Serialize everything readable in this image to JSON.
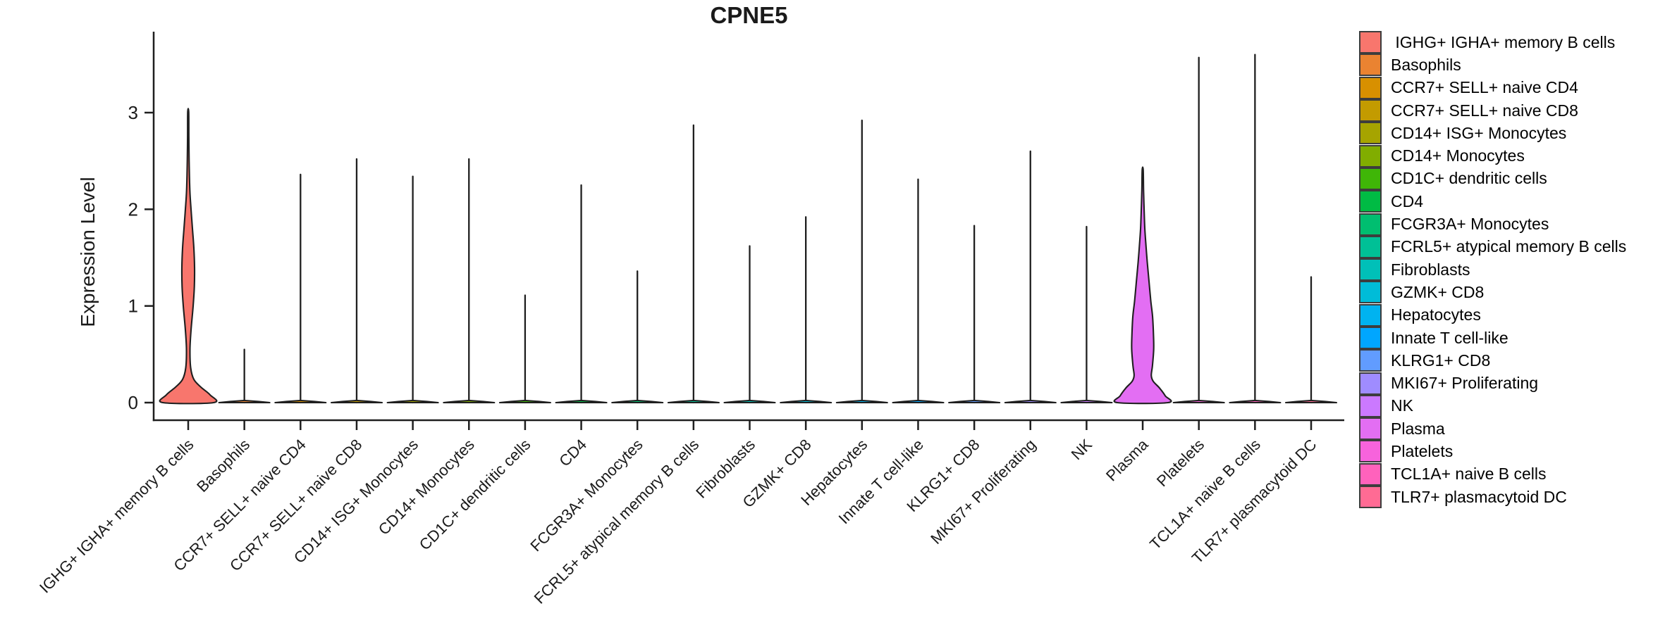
{
  "title": "CPNE5",
  "y_axis": {
    "label": "Expression Level",
    "ticks": [
      "0",
      "1",
      "2",
      "3"
    ]
  },
  "legend": {
    "items": [
      {
        "label": " IGHG+ IGHA+ memory B cells",
        "color": "#F8766D"
      },
      {
        "label": "Basophils",
        "color": "#EA8331"
      },
      {
        "label": "CCR7+ SELL+ naive CD4",
        "color": "#D89000"
      },
      {
        "label": "CCR7+ SELL+ naive CD8",
        "color": "#C39B00"
      },
      {
        "label": "CD14+ ISG+ Monocytes",
        "color": "#A6A400"
      },
      {
        "label": "CD14+ Monocytes",
        "color": "#81AD00"
      },
      {
        "label": "CD1C+ dendritic cells",
        "color": "#3FB607"
      },
      {
        "label": "CD4",
        "color": "#00BB44"
      },
      {
        "label": "FCGR3A+ Monocytes",
        "color": "#00BE70"
      },
      {
        "label": "FCRL5+ atypical memory B cells",
        "color": "#00C096"
      },
      {
        "label": "Fibroblasts",
        "color": "#00C0B8"
      },
      {
        "label": "GZMK+ CD8",
        "color": "#00BCD8"
      },
      {
        "label": "Hepatocytes",
        "color": "#00B3F0"
      },
      {
        "label": "Innate T cell-like",
        "color": "#00A6FF"
      },
      {
        "label": "KLRG1+ CD8",
        "color": "#619CFF"
      },
      {
        "label": "MKI67+ Proliferating",
        "color": "#9F8CFF"
      },
      {
        "label": "NK",
        "color": "#CB79FF"
      },
      {
        "label": "Plasma",
        "color": "#E36EF3"
      },
      {
        "label": "Platelets",
        "color": "#F763DC"
      },
      {
        "label": "TCL1A+ naive B cells",
        "color": "#FF62BC"
      },
      {
        "label": "TLR7+ plasmacytoid DC",
        "color": "#FF6B94"
      }
    ]
  },
  "chart_data": {
    "type": "violin",
    "title": "CPNE5",
    "xlabel": "",
    "ylabel": "Expression Level",
    "ylim": [
      0,
      3.84
    ],
    "yticks": [
      0,
      1,
      2,
      3
    ],
    "grid": false,
    "legend_position": "right",
    "outline_color": "#1f1f1f",
    "categories": [
      "IGHG+ IGHA+ memory B cells",
      "Basophils",
      "CCR7+ SELL+ naive CD4",
      "CCR7+ SELL+ naive CD8",
      "CD14+ ISG+ Monocytes",
      "CD14+ Monocytes",
      "CD1C+ dendritic cells",
      "CD4",
      "FCGR3A+ Monocytes",
      "FCRL5+ atypical memory B cells",
      "Fibroblasts",
      "GZMK+ CD8",
      "Hepatocytes",
      "Innate T cell-like",
      "KLRG1+ CD8",
      "MKI67+ Proliferating",
      "NK",
      "Plasma",
      "Platelets",
      "TCL1A+ naive B cells",
      "TLR7+ plasmacytoid DC"
    ],
    "colors": [
      "#F8766D",
      "#EA8331",
      "#D89000",
      "#C39B00",
      "#A6A400",
      "#81AD00",
      "#3FB607",
      "#00BB44",
      "#00BE70",
      "#00C096",
      "#00C0B8",
      "#00BCD8",
      "#00B3F0",
      "#00A6FF",
      "#619CFF",
      "#9F8CFF",
      "#CB79FF",
      "#E36EF3",
      "#F763DC",
      "#FF62BC",
      "#FF6B94"
    ],
    "max_expression": [
      3.01,
      0.55,
      2.36,
      2.52,
      2.34,
      2.52,
      1.11,
      2.25,
      1.36,
      2.87,
      1.62,
      1.92,
      2.92,
      2.31,
      1.83,
      2.6,
      1.82,
      2.41,
      3.57,
      3.6,
      1.3
    ],
    "violin_profiles": {
      "IGHG+ IGHA+ memory B cells": [
        [
          0,
          36
        ],
        [
          0.08,
          31
        ],
        [
          0.16,
          18
        ],
        [
          0.24,
          8
        ],
        [
          0.36,
          3.5
        ],
        [
          0.55,
          2.5
        ],
        [
          0.75,
          4
        ],
        [
          1.0,
          7
        ],
        [
          1.2,
          8.7
        ],
        [
          1.4,
          9
        ],
        [
          1.6,
          8
        ],
        [
          1.8,
          6
        ],
        [
          2.0,
          4
        ],
        [
          2.2,
          2.3
        ],
        [
          2.5,
          1.3
        ],
        [
          2.75,
          0.9
        ],
        [
          3.01,
          0.7
        ]
      ],
      "Plasma": [
        [
          0,
          36
        ],
        [
          0.07,
          32
        ],
        [
          0.15,
          24
        ],
        [
          0.22,
          15
        ],
        [
          0.28,
          12.2
        ],
        [
          0.38,
          13.8
        ],
        [
          0.55,
          15.6
        ],
        [
          0.7,
          15.3
        ],
        [
          0.89,
          14
        ],
        [
          1.05,
          11.5
        ],
        [
          1.25,
          9
        ],
        [
          1.45,
          6.5
        ],
        [
          1.62,
          4.7
        ],
        [
          1.8,
          3
        ],
        [
          2.0,
          2
        ],
        [
          2.2,
          1.2
        ],
        [
          2.41,
          0.7
        ]
      ],
      "default": [
        [
          0,
          36
        ],
        [
          0.012,
          20
        ],
        [
          0.022,
          1.2
        ]
      ]
    }
  }
}
